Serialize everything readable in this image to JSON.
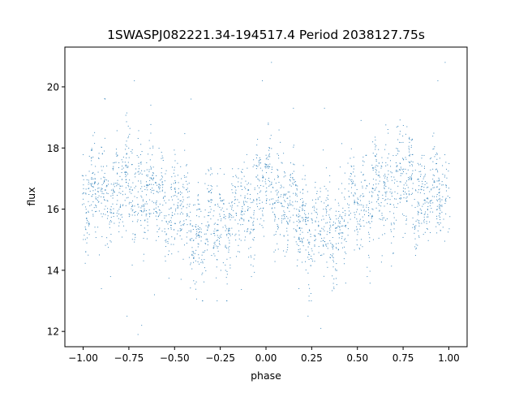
{
  "chart_data": {
    "type": "scatter",
    "title": "1SWASPJ082221.34-194517.4 Period 2038127.75s",
    "xlabel": "phase",
    "ylabel": "flux",
    "xlim": [
      -1.1,
      1.1
    ],
    "ylim": [
      11.5,
      21.3
    ],
    "x_ticks": [
      -1.0,
      -0.75,
      -0.5,
      -0.25,
      0.0,
      0.25,
      0.5,
      0.75,
      1.0
    ],
    "x_tick_labels": [
      "−1.00",
      "−0.75",
      "−0.50",
      "−0.25",
      "0.00",
      "0.25",
      "0.50",
      "0.75",
      "1.00"
    ],
    "y_ticks": [
      12,
      14,
      16,
      18,
      20
    ],
    "y_tick_labels": [
      "12",
      "14",
      "16",
      "18",
      "20"
    ],
    "grid": false,
    "legend": "none",
    "point_color": "#1f77b4",
    "series": [
      {
        "x_range": [
          -1.0,
          1.0
        ],
        "mirrored_phase": true,
        "baseline_flux": [
          [
            0.0,
            16.6
          ],
          [
            0.05,
            16.6
          ],
          [
            0.1,
            16.2
          ],
          [
            0.15,
            15.8
          ],
          [
            0.2,
            15.6
          ],
          [
            0.25,
            15.6
          ],
          [
            0.3,
            15.4
          ],
          [
            0.35,
            15.2
          ],
          [
            0.4,
            15.4
          ],
          [
            0.45,
            15.8
          ],
          [
            0.5,
            16.1
          ],
          [
            0.55,
            16.2
          ],
          [
            0.6,
            16.4
          ],
          [
            0.65,
            16.6
          ],
          [
            0.7,
            16.7
          ],
          [
            0.75,
            16.8
          ],
          [
            0.8,
            16.6
          ],
          [
            0.85,
            16.5
          ],
          [
            0.9,
            16.4
          ],
          [
            0.95,
            16.5
          ],
          [
            1.0,
            16.6
          ]
        ],
        "scatter_range": [
          13.0,
          20.9
        ],
        "outliers": [
          [
            -0.88,
            19.6
          ],
          [
            -0.72,
            20.2
          ],
          [
            -0.63,
            19.4
          ],
          [
            -0.41,
            19.6
          ],
          [
            -0.02,
            20.2
          ],
          [
            0.03,
            20.8
          ],
          [
            0.15,
            19.3
          ],
          [
            0.32,
            19.3
          ],
          [
            0.52,
            18.9
          ],
          [
            0.94,
            20.2
          ],
          [
            0.98,
            20.8
          ],
          [
            -0.68,
            12.2
          ],
          [
            -0.7,
            11.9
          ],
          [
            -0.76,
            12.5
          ],
          [
            0.3,
            12.1
          ],
          [
            0.23,
            12.5
          ],
          [
            -0.61,
            13.2
          ],
          [
            0.18,
            13.4
          ],
          [
            -0.9,
            13.4
          ]
        ]
      }
    ]
  }
}
